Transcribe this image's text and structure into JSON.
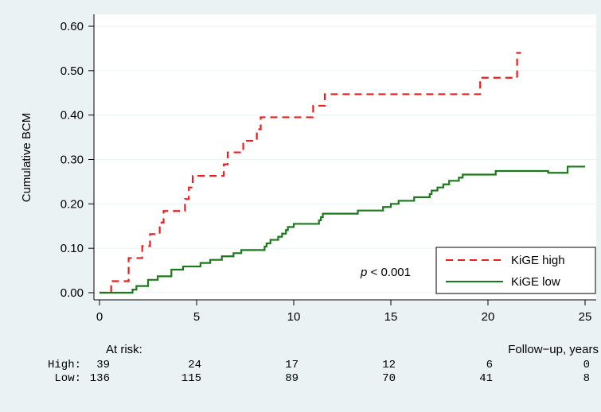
{
  "chart_data": {
    "type": "line",
    "title": "",
    "xlabel": "",
    "ylabel": "Cumulative BCM",
    "xlim": [
      0,
      25
    ],
    "ylim": [
      0,
      0.6
    ],
    "x_ticks": [
      "0",
      "5",
      "10",
      "15",
      "20",
      "25"
    ],
    "y_ticks": [
      "0.00",
      "0.10",
      "0.20",
      "0.30",
      "0.40",
      "0.50",
      "0.60"
    ],
    "grid": "horizontal",
    "legend_position": "bottom-right",
    "annotation": {
      "italic": "p",
      "rest": " < 0.001"
    },
    "series": [
      {
        "name": "KiGE high",
        "color": "#ee1c1c",
        "line_style": "dashed",
        "step": true,
        "x": [
          0,
          0.6,
          1.5,
          2.2,
          2.6,
          3.1,
          3.3,
          4.4,
          4.6,
          4.8,
          6.4,
          6.6,
          7.4,
          8.1,
          8.3,
          11.0,
          11.6,
          19.6,
          21.5,
          21.7
        ],
        "y": [
          0,
          0.026,
          0.078,
          0.105,
          0.132,
          0.158,
          0.184,
          0.211,
          0.237,
          0.263,
          0.289,
          0.316,
          0.342,
          0.368,
          0.395,
          0.421,
          0.447,
          0.484,
          0.54,
          0.54
        ]
      },
      {
        "name": "KiGE low",
        "color": "#1a7a1a",
        "line_style": "solid",
        "step": true,
        "x": [
          0,
          1.7,
          1.9,
          2.5,
          3.0,
          3.7,
          4.3,
          5.2,
          5.7,
          6.3,
          6.9,
          7.3,
          8.5,
          8.6,
          8.8,
          9.2,
          9.4,
          9.6,
          9.7,
          10.0,
          11.3,
          11.4,
          11.5,
          13.3,
          14.6,
          15.0,
          15.4,
          16.2,
          17.0,
          17.1,
          17.4,
          17.7,
          18.0,
          18.5,
          18.7,
          20.4,
          23.1,
          24.1,
          25.0
        ],
        "y": [
          0,
          0.007,
          0.015,
          0.029,
          0.037,
          0.052,
          0.059,
          0.067,
          0.074,
          0.082,
          0.089,
          0.096,
          0.104,
          0.111,
          0.119,
          0.126,
          0.133,
          0.141,
          0.148,
          0.155,
          0.163,
          0.17,
          0.178,
          0.185,
          0.193,
          0.2,
          0.207,
          0.215,
          0.222,
          0.23,
          0.237,
          0.244,
          0.252,
          0.259,
          0.266,
          0.274,
          0.27,
          0.284,
          0.284
        ]
      }
    ],
    "risk_table": {
      "label": "At risk:",
      "x_caption": "Follow−up, years",
      "rows": [
        {
          "label": "High:",
          "values": [
            "39",
            "24",
            "17",
            "12",
            "6",
            "0"
          ]
        },
        {
          "label": "Low:",
          "values": [
            "136",
            "115",
            "89",
            "70",
            "41",
            "8"
          ]
        }
      ]
    }
  }
}
